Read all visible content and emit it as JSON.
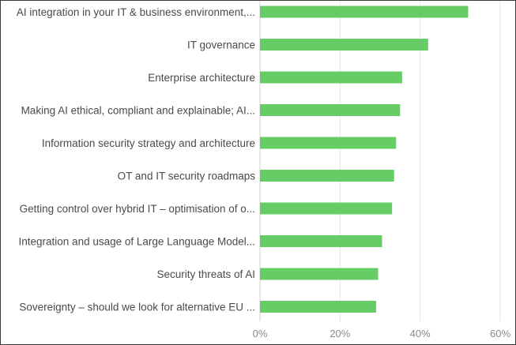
{
  "chart_data": {
    "type": "bar",
    "orientation": "horizontal",
    "title": "",
    "xlabel": "",
    "ylabel": "",
    "xlim": [
      0,
      60
    ],
    "x_ticks": [
      0,
      20,
      40,
      60
    ],
    "x_tick_labels": [
      "0%",
      "20%",
      "40%",
      "60%"
    ],
    "grid": true,
    "bar_color": "#66cc66",
    "categories": [
      "AI integration in your IT & business environment,...",
      "IT governance",
      "Enterprise architecture",
      "Making AI ethical, compliant and explainable; AI...",
      "Information security strategy and architecture",
      "OT and IT security roadmaps",
      "Getting control over hybrid IT – optimisation of o...",
      "Integration and usage of Large Language Model...",
      "Security threats of AI",
      "Sovereignty – should we look for alternative EU ..."
    ],
    "values": [
      52,
      42,
      35.5,
      35,
      34,
      33.5,
      33,
      30.5,
      29.5,
      29
    ]
  }
}
